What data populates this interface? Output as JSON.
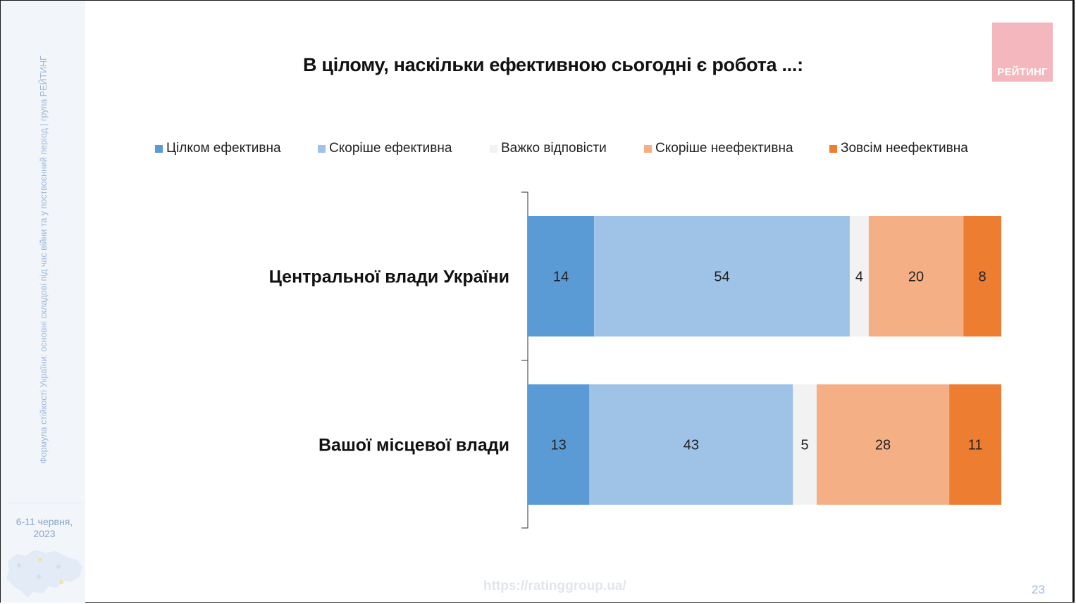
{
  "sidebar": {
    "vertical_text": "Формула стійкості України: основні складові під час війни та у поствоєнний період | група РЕЙТИНГ",
    "date_line1": "6-11 червня,",
    "date_line2": "2023",
    "map_icon": "ukraine-map-icon"
  },
  "title": "В цілому, наскільки ефективною сьогодні є робота ...:",
  "logo": {
    "text": "РЕЙТИНГ",
    "bg_color": "#f4b7bd"
  },
  "footer": {
    "url": "https://ratinggroup.ua/",
    "page_number": "23"
  },
  "chart_data": {
    "type": "bar",
    "orientation": "horizontal",
    "stacked": true,
    "title": "В цілому, наскільки ефективною сьогодні є робота ...:",
    "categories": [
      "Центральної влади України",
      "Вашої місцевої влади"
    ],
    "series": [
      {
        "name": "Цілком ефективна",
        "color": "#5b9bd5",
        "values": [
          14,
          13
        ]
      },
      {
        "name": "Скоріше ефективна",
        "color": "#9fc3e7",
        "values": [
          54,
          43
        ]
      },
      {
        "name": "Важко відповісти",
        "color": "#f2f2f2",
        "values": [
          4,
          5
        ]
      },
      {
        "name": "Скоріше неефективна",
        "color": "#f4b084",
        "values": [
          20,
          28
        ]
      },
      {
        "name": "Зовсім неефективна",
        "color": "#ed7d31",
        "values": [
          8,
          11
        ]
      }
    ],
    "xlim": [
      0,
      100
    ],
    "legend_position": "top",
    "grid": false
  }
}
